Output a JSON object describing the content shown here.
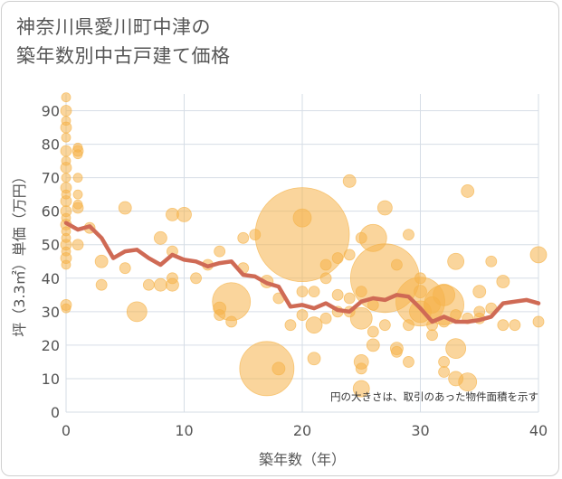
{
  "title": {
    "line1": "神奈川県愛川町中津の",
    "line2": "築年数別中古戸建て価格"
  },
  "chart_data": {
    "type": "scatter",
    "title": "神奈川県愛川町中津の築年数別中古戸建て価格",
    "xlabel": "築年数（年）",
    "ylabel": "坪（3.3㎡）単価（万円）",
    "xlim": [
      0,
      40
    ],
    "ylim": [
      0,
      95
    ],
    "xticks": [
      0,
      10,
      20,
      30,
      40
    ],
    "yticks": [
      0,
      10,
      20,
      30,
      40,
      50,
      60,
      70,
      80,
      90
    ],
    "grid": true,
    "annotation": "円の大きさは、取引のあった物件面積を示す",
    "colors": {
      "bubble": "#f5b34a",
      "trend": "#cf6a55",
      "grid": "#d6dde6"
    },
    "series": [
      {
        "kind": "bubble",
        "points": [
          {
            "x": 0,
            "y": 94,
            "s": 5
          },
          {
            "x": 0,
            "y": 90,
            "s": 6
          },
          {
            "x": 0,
            "y": 87,
            "s": 5
          },
          {
            "x": 0,
            "y": 85,
            "s": 6
          },
          {
            "x": 0,
            "y": 82,
            "s": 5
          },
          {
            "x": 0,
            "y": 78,
            "s": 6
          },
          {
            "x": 0,
            "y": 75,
            "s": 5
          },
          {
            "x": 0,
            "y": 73,
            "s": 6
          },
          {
            "x": 0,
            "y": 70,
            "s": 5
          },
          {
            "x": 0,
            "y": 67,
            "s": 6
          },
          {
            "x": 0,
            "y": 65,
            "s": 5
          },
          {
            "x": 0,
            "y": 63,
            "s": 6
          },
          {
            "x": 0,
            "y": 60,
            "s": 6
          },
          {
            "x": 0,
            "y": 58,
            "s": 5
          },
          {
            "x": 0,
            "y": 56,
            "s": 6
          },
          {
            "x": 0,
            "y": 54,
            "s": 5
          },
          {
            "x": 0,
            "y": 52,
            "s": 5
          },
          {
            "x": 0,
            "y": 50,
            "s": 6
          },
          {
            "x": 0,
            "y": 48,
            "s": 5
          },
          {
            "x": 0,
            "y": 46,
            "s": 6
          },
          {
            "x": 0,
            "y": 44,
            "s": 5
          },
          {
            "x": 0,
            "y": 32,
            "s": 6
          },
          {
            "x": 0,
            "y": 31,
            "s": 5
          },
          {
            "x": 1,
            "y": 79,
            "s": 5
          },
          {
            "x": 1,
            "y": 78,
            "s": 6
          },
          {
            "x": 1,
            "y": 77,
            "s": 5
          },
          {
            "x": 1,
            "y": 70,
            "s": 5
          },
          {
            "x": 1,
            "y": 65,
            "s": 5
          },
          {
            "x": 1,
            "y": 62,
            "s": 5
          },
          {
            "x": 1,
            "y": 61,
            "s": 6
          },
          {
            "x": 1,
            "y": 50,
            "s": 6
          },
          {
            "x": 2,
            "y": 55,
            "s": 6
          },
          {
            "x": 3,
            "y": 45,
            "s": 7
          },
          {
            "x": 3,
            "y": 38,
            "s": 6
          },
          {
            "x": 5,
            "y": 61,
            "s": 7
          },
          {
            "x": 5,
            "y": 43,
            "s": 6
          },
          {
            "x": 6,
            "y": 30,
            "s": 11
          },
          {
            "x": 7,
            "y": 38,
            "s": 6
          },
          {
            "x": 8,
            "y": 52,
            "s": 7
          },
          {
            "x": 8,
            "y": 38,
            "s": 7
          },
          {
            "x": 9,
            "y": 59,
            "s": 7
          },
          {
            "x": 9,
            "y": 48,
            "s": 6
          },
          {
            "x": 9,
            "y": 40,
            "s": 6
          },
          {
            "x": 9,
            "y": 38,
            "s": 7
          },
          {
            "x": 10,
            "y": 59,
            "s": 8
          },
          {
            "x": 11,
            "y": 40,
            "s": 6
          },
          {
            "x": 12,
            "y": 44,
            "s": 6
          },
          {
            "x": 13,
            "y": 48,
            "s": 6
          },
          {
            "x": 13,
            "y": 31,
            "s": 7
          },
          {
            "x": 13,
            "y": 29,
            "s": 6
          },
          {
            "x": 14,
            "y": 33,
            "s": 21
          },
          {
            "x": 14,
            "y": 27,
            "s": 6
          },
          {
            "x": 15,
            "y": 52,
            "s": 6
          },
          {
            "x": 15,
            "y": 43,
            "s": 6
          },
          {
            "x": 16,
            "y": 53,
            "s": 6
          },
          {
            "x": 17,
            "y": 13,
            "s": 30
          },
          {
            "x": 17,
            "y": 39,
            "s": 7
          },
          {
            "x": 18,
            "y": 13,
            "s": 7
          },
          {
            "x": 18,
            "y": 34,
            "s": 6
          },
          {
            "x": 19,
            "y": 26,
            "s": 6
          },
          {
            "x": 20,
            "y": 53,
            "s": 52
          },
          {
            "x": 20,
            "y": 58,
            "s": 10
          },
          {
            "x": 20,
            "y": 36,
            "s": 6
          },
          {
            "x": 20,
            "y": 29,
            "s": 6
          },
          {
            "x": 21,
            "y": 26,
            "s": 9
          },
          {
            "x": 21,
            "y": 16,
            "s": 7
          },
          {
            "x": 21,
            "y": 36,
            "s": 6
          },
          {
            "x": 22,
            "y": 44,
            "s": 6
          },
          {
            "x": 22,
            "y": 40,
            "s": 6
          },
          {
            "x": 22,
            "y": 28,
            "s": 6
          },
          {
            "x": 23,
            "y": 46,
            "s": 6
          },
          {
            "x": 23,
            "y": 35,
            "s": 6
          },
          {
            "x": 23,
            "y": 30,
            "s": 6
          },
          {
            "x": 24,
            "y": 69,
            "s": 7
          },
          {
            "x": 24,
            "y": 47,
            "s": 6
          },
          {
            "x": 24,
            "y": 34,
            "s": 6
          },
          {
            "x": 24,
            "y": 30,
            "s": 6
          },
          {
            "x": 25,
            "y": 28,
            "s": 12
          },
          {
            "x": 25,
            "y": 15,
            "s": 8
          },
          {
            "x": 25,
            "y": 13,
            "s": 6
          },
          {
            "x": 25,
            "y": 7,
            "s": 9
          },
          {
            "x": 25,
            "y": 52,
            "s": 6
          },
          {
            "x": 25,
            "y": 36,
            "s": 6
          },
          {
            "x": 26,
            "y": 52,
            "s": 15
          },
          {
            "x": 26,
            "y": 20,
            "s": 7
          },
          {
            "x": 26,
            "y": 24,
            "s": 6
          },
          {
            "x": 26,
            "y": 32,
            "s": 6
          },
          {
            "x": 27,
            "y": 40,
            "s": 38
          },
          {
            "x": 27,
            "y": 61,
            "s": 8
          },
          {
            "x": 27,
            "y": 26,
            "s": 6
          },
          {
            "x": 28,
            "y": 44,
            "s": 6
          },
          {
            "x": 28,
            "y": 19,
            "s": 7
          },
          {
            "x": 28,
            "y": 18,
            "s": 6
          },
          {
            "x": 29,
            "y": 53,
            "s": 6
          },
          {
            "x": 29,
            "y": 15,
            "s": 6
          },
          {
            "x": 29,
            "y": 26,
            "s": 6
          },
          {
            "x": 30,
            "y": 33,
            "s": 27
          },
          {
            "x": 30,
            "y": 40,
            "s": 6
          },
          {
            "x": 30,
            "y": 30,
            "s": 12
          },
          {
            "x": 30,
            "y": 36,
            "s": 7
          },
          {
            "x": 31,
            "y": 32,
            "s": 9
          },
          {
            "x": 31,
            "y": 26,
            "s": 6
          },
          {
            "x": 31,
            "y": 23,
            "s": 6
          },
          {
            "x": 32,
            "y": 32,
            "s": 22
          },
          {
            "x": 32,
            "y": 35,
            "s": 12
          },
          {
            "x": 32,
            "y": 15,
            "s": 6
          },
          {
            "x": 32,
            "y": 12,
            "s": 6
          },
          {
            "x": 32,
            "y": 27,
            "s": 6
          },
          {
            "x": 33,
            "y": 45,
            "s": 9
          },
          {
            "x": 33,
            "y": 19,
            "s": 11
          },
          {
            "x": 33,
            "y": 10,
            "s": 8
          },
          {
            "x": 33,
            "y": 29,
            "s": 6
          },
          {
            "x": 34,
            "y": 66,
            "s": 7
          },
          {
            "x": 34,
            "y": 9,
            "s": 10
          },
          {
            "x": 34,
            "y": 28,
            "s": 6
          },
          {
            "x": 35,
            "y": 36,
            "s": 7
          },
          {
            "x": 35,
            "y": 30,
            "s": 6
          },
          {
            "x": 35,
            "y": 28,
            "s": 6
          },
          {
            "x": 36,
            "y": 45,
            "s": 6
          },
          {
            "x": 36,
            "y": 31,
            "s": 6
          },
          {
            "x": 37,
            "y": 39,
            "s": 7
          },
          {
            "x": 37,
            "y": 26,
            "s": 6
          },
          {
            "x": 38,
            "y": 26,
            "s": 6
          },
          {
            "x": 40,
            "y": 47,
            "s": 9
          },
          {
            "x": 40,
            "y": 27,
            "s": 6
          }
        ]
      },
      {
        "kind": "line",
        "x": [
          0,
          1,
          2,
          3,
          4,
          5,
          6,
          7,
          8,
          9,
          10,
          11,
          12,
          13,
          14,
          15,
          16,
          17,
          18,
          19,
          20,
          21,
          22,
          23,
          24,
          25,
          26,
          27,
          28,
          29,
          30,
          31,
          32,
          33,
          34,
          35,
          36,
          37,
          38,
          39,
          40
        ],
        "y": [
          56.5,
          54.5,
          55.5,
          52,
          46,
          48,
          48.5,
          46,
          44,
          47,
          45.5,
          45,
          43.5,
          44.5,
          45,
          41,
          40.5,
          38.5,
          37.5,
          31.5,
          32,
          31,
          32.5,
          30.5,
          30,
          33,
          34,
          33.5,
          35,
          34.5,
          31,
          27,
          28.5,
          27,
          27,
          27.5,
          28.5,
          32.5,
          33,
          33.5,
          32.5
        ]
      }
    ]
  }
}
